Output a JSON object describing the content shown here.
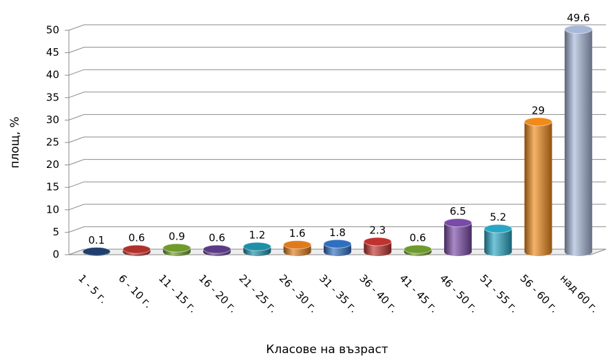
{
  "chart_data": {
    "type": "bar",
    "xlabel": "Класове на възраст",
    "ylabel": "площ, %",
    "categories": [
      "1 - 5 г.",
      "6 - 10 г.",
      "11 - 15 г.",
      "16 - 20 г.",
      "21 - 25 г.",
      "26 - 30 г.",
      "31 - 35 г.",
      "36 - 40 г.",
      "41 - 45 г.",
      "46 - 50 г.",
      "51 - 55 г.",
      "56 - 60 г.",
      "над 60 г."
    ],
    "values": [
      0.1,
      0.6,
      0.9,
      0.6,
      1.2,
      1.6,
      1.8,
      2.3,
      0.6,
      6.5,
      5.2,
      29,
      49.6
    ],
    "colors": [
      "#1f3f6e",
      "#b0302c",
      "#6f9a2c",
      "#5c3b86",
      "#1f8fa8",
      "#e07b1c",
      "#2f6fc0",
      "#c0322e",
      "#6f9a2c",
      "#7a4aa8",
      "#2aa6c4",
      "#f08a1a",
      "#a8b8d8"
    ],
    "ylim": [
      0,
      50
    ],
    "yticks": [
      0,
      5,
      10,
      15,
      20,
      25,
      30,
      35,
      40,
      45,
      50
    ],
    "grid": true
  }
}
